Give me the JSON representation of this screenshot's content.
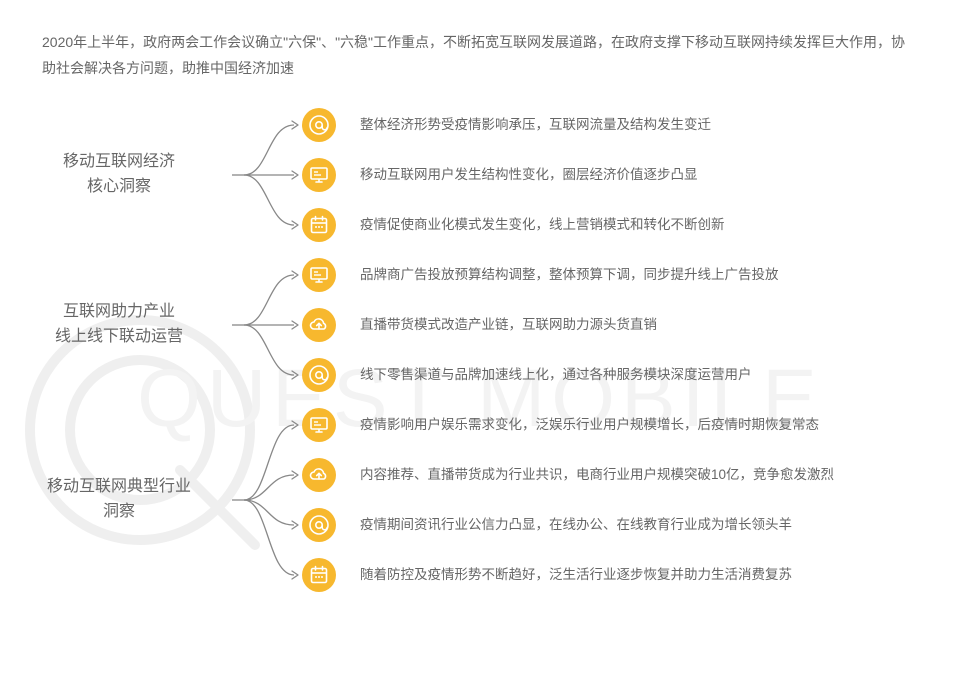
{
  "intro": "2020年上半年，政府两会工作会议确立\"六保\"、\"六稳\"工作重点，不断拓宽互联网发展道路，在政府支撑下移动互联网持续发挥巨大作用，协助社会解决各方问题，助推中国经济加速",
  "watermark_text": "QUEST MOBILE",
  "colors": {
    "text_body": "#666666",
    "icon_bg": "#f7b82e",
    "icon_fg": "#ffffff",
    "bracket": "#888888",
    "arrow": "#888888",
    "watermark": "#f3f3f3",
    "wm_circle": "#efefef",
    "background": "#ffffff"
  },
  "intro_fontsize": 14,
  "label_fontsize": 16,
  "row_fontsize": 13.5,
  "sections": [
    {
      "label_line1": "移动互联网经济",
      "label_line2": "核心洞察",
      "rows": [
        {
          "icon": "at",
          "text": "整体经济形势受疫情影响承压，互联网流量及结构发生变迁"
        },
        {
          "icon": "monitor",
          "text": "移动互联网用户发生结构性变化，圈层经济价值逐步凸显"
        },
        {
          "icon": "calendar",
          "text": "疫情促使商业化模式发生变化，线上营销模式和转化不断创新"
        }
      ]
    },
    {
      "label_line1": "互联网助力产业",
      "label_line2": "线上线下联动运营",
      "rows": [
        {
          "icon": "monitor",
          "text": "品牌商广告投放预算结构调整，整体预算下调，同步提升线上广告投放"
        },
        {
          "icon": "cloud",
          "text": "直播带货模式改造产业链，互联网助力源头货直销"
        },
        {
          "icon": "at",
          "text": "线下零售渠道与品牌加速线上化，通过各种服务模块深度运营用户"
        }
      ]
    },
    {
      "label_line1": "移动互联网典型行业",
      "label_line2": "洞察",
      "rows": [
        {
          "icon": "monitor",
          "text": "疫情影响用户娱乐需求变化，泛娱乐行业用户规模增长，后疫情时期恢复常态"
        },
        {
          "icon": "cloud",
          "text": "内容推荐、直播带货成为行业共识，电商行业用户规模突破10亿，竞争愈发激烈"
        },
        {
          "icon": "at",
          "text": "疫情期间资讯行业公信力凸显，在线办公、在线教育行业成为增长领头羊"
        },
        {
          "icon": "calendar",
          "text": "随着防控及疫情形势不断趋好，泛生活行业逐步恢复并助力生活消费复苏"
        }
      ]
    }
  ]
}
